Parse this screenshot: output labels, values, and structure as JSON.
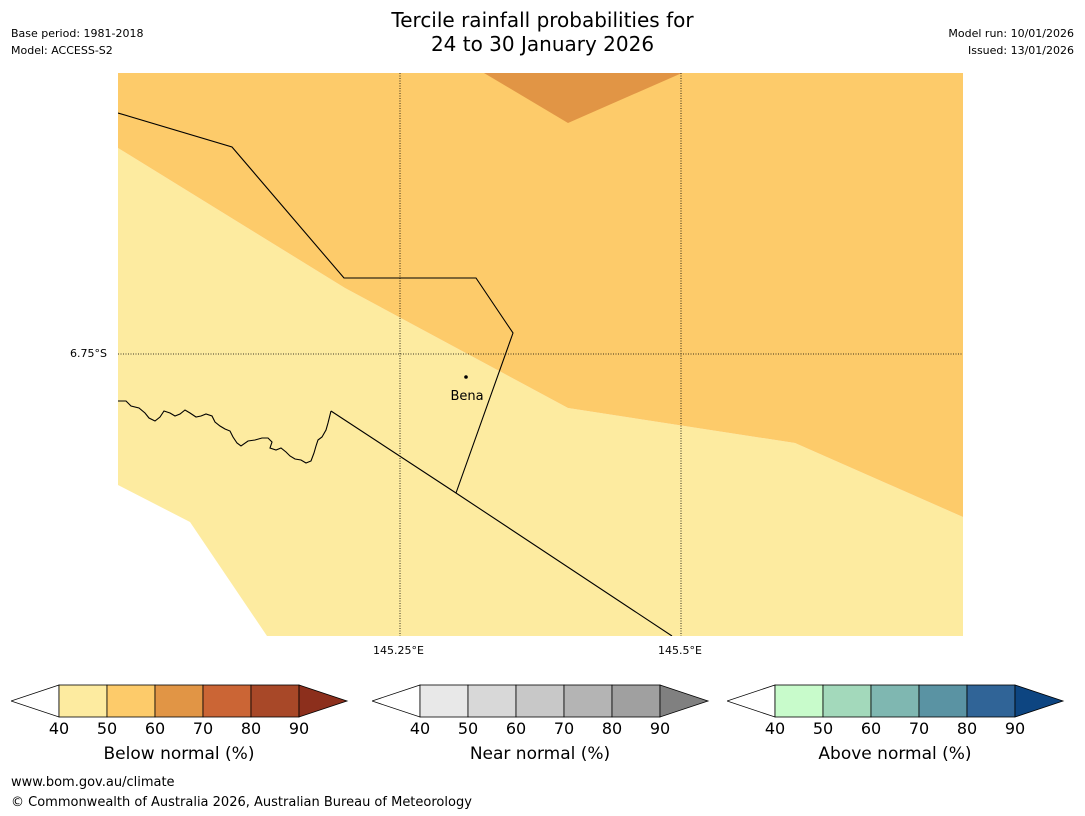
{
  "header": {
    "title_line1": "Tercile rainfall probabilities for",
    "title_line2": "24 to 30 January 2026",
    "base_period": "Base period: 1981-2018",
    "model": "Model: ACCESS-S2",
    "model_run": "Model run: 10/01/2026",
    "issued": "Issued: 13/01/2026"
  },
  "map": {
    "lat_label": "6.75°S",
    "lon_labels": [
      "145.25°E",
      "145.5°E"
    ],
    "place_label": "Bena",
    "colors": {
      "light_zone": "#FDEBA0",
      "mid_zone": "#FDCB6A",
      "dark_zone": "#E19545"
    }
  },
  "legends": [
    {
      "title": "Below normal (%)",
      "ticks": [
        "40",
        "50",
        "60",
        "70",
        "80",
        "90"
      ],
      "colors": [
        "#FFFFFF",
        "#FDEBA0",
        "#FDCB6A",
        "#E19545",
        "#CB6535",
        "#A84828",
        "#8C2F1C"
      ]
    },
    {
      "title": "Near normal (%)",
      "ticks": [
        "40",
        "50",
        "60",
        "70",
        "80",
        "90"
      ],
      "colors": [
        "#FFFFFF",
        "#E8E8E8",
        "#D8D8D8",
        "#C8C8C8",
        "#B4B4B4",
        "#A0A0A0",
        "#808080"
      ]
    },
    {
      "title": "Above normal (%)",
      "ticks": [
        "40",
        "50",
        "60",
        "70",
        "80",
        "90"
      ],
      "colors": [
        "#FFFFFF",
        "#C8FBCB",
        "#A3D9BB",
        "#7FB7B1",
        "#5A93A3",
        "#306497",
        "#0D4581"
      ]
    }
  ],
  "footer": {
    "website": "www.bom.gov.au/climate",
    "copyright": "© Commonwealth of Australia 2026, Australian Bureau of Meteorology"
  }
}
